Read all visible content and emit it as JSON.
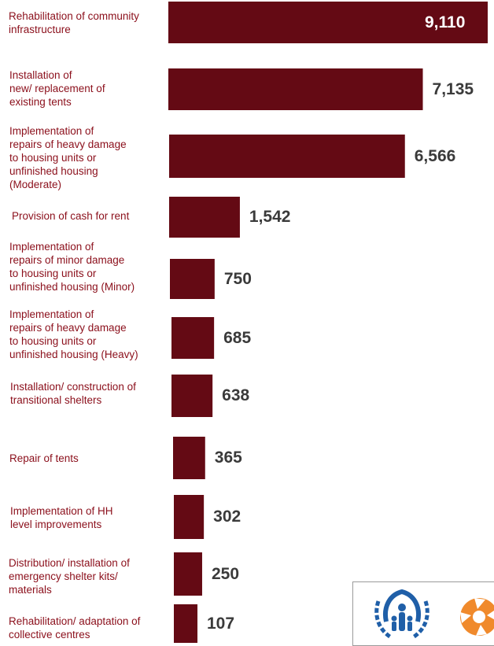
{
  "chart_data": {
    "type": "bar",
    "orientation": "horizontal",
    "categories": [
      "Rehabilitation of community infrastructure",
      "Installation of new/ replacement of existing tents",
      "Implementation of repairs of heavy damage to housing units or unfinished housing (Moderate)",
      "Provision of cash for rent",
      "Implementation of repairs of minor damage to housing units or unfinished housing (Minor)",
      "Implementation of repairs of heavy damage to housing units or unfinished housing (Heavy)",
      "Installation/ construction of transitional shelters",
      "Repair of tents",
      "Implementation of HH level improvements",
      "Distribution/ installation of emergency shelter kits/ materials",
      "Rehabilitation/ adaptation of collective centres"
    ],
    "label_lines": [
      [
        "Rehabilitation of community",
        "infrastructure"
      ],
      [
        "Installation of",
        "new/ replacement of",
        "existing tents"
      ],
      [
        "Implementation of",
        "repairs of heavy damage",
        "to housing units or",
        "unfinished housing",
        "(Moderate)"
      ],
      [
        "Provision of cash for rent"
      ],
      [
        "Implementation of",
        "repairs of minor damage",
        "to housing units or",
        "unfinished housing (Minor)"
      ],
      [
        "Implementation of",
        "repairs of heavy damage",
        "to housing units or",
        "unfinished housing (Heavy)"
      ],
      [
        "Installation/ construction of",
        "transitional shelters"
      ],
      [
        "Repair of tents"
      ],
      [
        "Implementation of HH",
        "level improvements"
      ],
      [
        "Distribution/ installation of",
        "emergency shelter kits/",
        "materials"
      ],
      [
        "Rehabilitation/ adaptation of",
        "collective centres"
      ]
    ],
    "values": [
      9110,
      7135,
      6566,
      1542,
      750,
      685,
      638,
      365,
      302,
      250,
      107
    ],
    "value_labels": [
      "9,110",
      "7,135",
      "6,566",
      "1,542",
      "750",
      "685",
      "638",
      "365",
      "302",
      "250",
      "107"
    ],
    "bar_color": "#640a14",
    "label_color": "#8b0f1b",
    "grid": false,
    "legend": "none"
  },
  "logos": {
    "left_icon": "unhcr-logo-icon",
    "right_icon": "partner-logo-icon",
    "left_color": "#1f5fa8",
    "right_color": "#f08a2c"
  }
}
